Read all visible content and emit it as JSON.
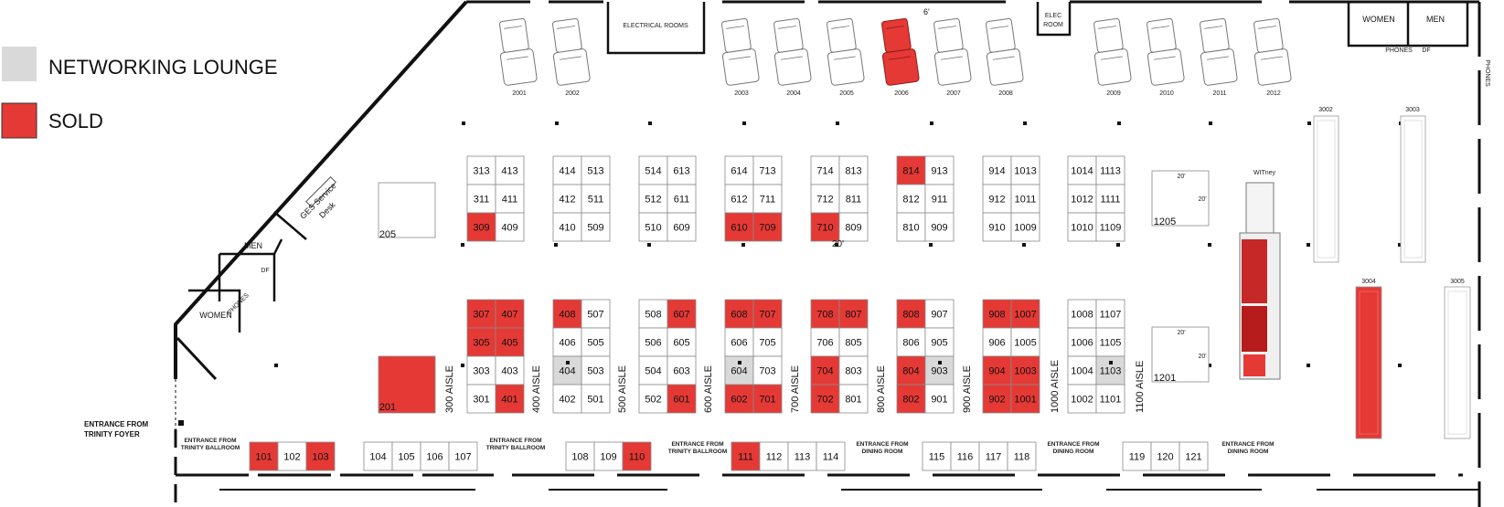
{
  "legend": [
    {
      "label": "NETWORKING LOUNGE",
      "color": "#d9d9d9"
    },
    {
      "label": "SOLD",
      "color": "#e53935"
    }
  ],
  "colors": {
    "sold": "#e53935",
    "lounge": "#d9d9d9",
    "available": "#ffffff",
    "wall": "#111111"
  },
  "rooms": {
    "electrical": "ELECTRICAL ROOMS",
    "elec_line1": "ELEC",
    "elec_line2": "ROOM",
    "women_top": "WOMEN",
    "men_top": "MEN",
    "phones_top": "PHONES",
    "df_top": "DF",
    "phones_right": "PHONES",
    "women_left": "WOMEN",
    "men_left": "MEN",
    "phones_left": "PHONES",
    "df_left": "DF",
    "ges_line1": "GES Service",
    "ges_line2": "Desk"
  },
  "dims": {
    "six_ft": "6'",
    "twenty_main": "20'"
  },
  "entrances": {
    "trinity_foyer_1": "ENTRANCE FROM",
    "trinity_foyer_2": "TRINITY FOYER",
    "ballroom_a_1": "ENTRANCE FROM",
    "ballroom_a_2": "TRINITY BALLROOM",
    "ballroom_b_1": "ENTRANCE FROM",
    "ballroom_b_2": "TRINITY BALLROOM",
    "ballroom_c_1": "ENTRANCE FROM",
    "ballroom_c_2": "TRINITY BALLROOM",
    "dining_a_1": "ENTRANCE FROM",
    "dining_a_2": "DINING ROOM",
    "dining_b_1": "ENTRANCE FROM",
    "dining_b_2": "DINING ROOM",
    "dining_c_1": "ENTRANCE FROM",
    "dining_c_2": "DINING ROOM"
  },
  "aisles": [
    "300 AISLE",
    "400 AISLE",
    "500 AISLE",
    "600 AISLE",
    "700 AISLE",
    "800 AISLE",
    "900 AISLE",
    "1000 AISLE",
    "1100 AISLE"
  ],
  "vehicles": [
    "2001",
    "2002",
    "2003",
    "2004",
    "2005",
    "2006",
    "2007",
    "2008",
    "2009",
    "2010",
    "2011",
    "2012"
  ],
  "vehicle_sold": "2006",
  "twenties": {
    "a1": "20'",
    "a2": "20'",
    "b1": "20'",
    "b2": "20'"
  },
  "truck_label": "WITney",
  "islands": {
    "i3002": "3002",
    "i3003": "3003",
    "i3004": "3004",
    "i3005": "3005",
    "b1205": "1205",
    "b1201": "1201",
    "b205": "205",
    "b201": "201"
  },
  "booths": {
    "top_blocks": [
      {
        "rows": [
          [
            "313",
            "413"
          ],
          [
            "311",
            "411"
          ],
          [
            "309",
            "409"
          ]
        ]
      },
      {
        "rows": [
          [
            "414",
            "513"
          ],
          [
            "412",
            "511"
          ],
          [
            "410",
            "509"
          ]
        ]
      },
      {
        "rows": [
          [
            "514",
            "613"
          ],
          [
            "512",
            "611"
          ],
          [
            "510",
            "609"
          ]
        ]
      },
      {
        "rows": [
          [
            "614",
            "713"
          ],
          [
            "612",
            "711"
          ],
          [
            "610",
            "709"
          ]
        ]
      },
      {
        "rows": [
          [
            "714",
            "813"
          ],
          [
            "712",
            "811"
          ],
          [
            "710",
            "809"
          ]
        ]
      },
      {
        "rows": [
          [
            "814",
            "913"
          ],
          [
            "812",
            "911"
          ],
          [
            "810",
            "909"
          ]
        ]
      },
      {
        "rows": [
          [
            "914",
            "1013"
          ],
          [
            "912",
            "1011"
          ],
          [
            "910",
            "1009"
          ]
        ]
      },
      {
        "rows": [
          [
            "1014",
            "1113"
          ],
          [
            "1012",
            "1111"
          ],
          [
            "1010",
            "1109"
          ]
        ]
      }
    ],
    "bottom_blocks": [
      {
        "rows": [
          [
            "307",
            "407"
          ],
          [
            "305",
            "405"
          ],
          [
            "303",
            "403"
          ],
          [
            "301",
            "401"
          ]
        ]
      },
      {
        "rows": [
          [
            "408",
            "507"
          ],
          [
            "406",
            "505"
          ],
          [
            "404",
            "503"
          ],
          [
            "402",
            "501"
          ]
        ]
      },
      {
        "rows": [
          [
            "508",
            "607"
          ],
          [
            "506",
            "605"
          ],
          [
            "504",
            "603"
          ],
          [
            "502",
            "601"
          ]
        ]
      },
      {
        "rows": [
          [
            "608",
            "707"
          ],
          [
            "606",
            "705"
          ],
          [
            "604",
            "703"
          ],
          [
            "602",
            "701"
          ]
        ]
      },
      {
        "rows": [
          [
            "708",
            "807"
          ],
          [
            "706",
            "805"
          ],
          [
            "704",
            "803"
          ],
          [
            "702",
            "801"
          ]
        ]
      },
      {
        "rows": [
          [
            "808",
            "907"
          ],
          [
            "806",
            "905"
          ],
          [
            "804",
            "903"
          ],
          [
            "802",
            "901"
          ]
        ]
      },
      {
        "rows": [
          [
            "908",
            "1007"
          ],
          [
            "906",
            "1005"
          ],
          [
            "904",
            "1003"
          ],
          [
            "902",
            "1001"
          ]
        ]
      },
      {
        "rows": [
          [
            "1008",
            "1107"
          ],
          [
            "1006",
            "1105"
          ],
          [
            "1004",
            "1103"
          ],
          [
            "1002",
            "1101"
          ]
        ]
      }
    ],
    "front_groups": [
      [
        "101",
        "102",
        "103"
      ],
      [
        "104",
        "105",
        "106",
        "107"
      ],
      [
        "108",
        "109",
        "110"
      ],
      [
        "111",
        "112",
        "113",
        "114"
      ],
      [
        "115",
        "116",
        "117",
        "118"
      ],
      [
        "119",
        "120",
        "121"
      ]
    ],
    "sold": [
      "309",
      "610",
      "709",
      "710",
      "814",
      "307",
      "407",
      "305",
      "405",
      "401",
      "408",
      "607",
      "601",
      "608",
      "707",
      "602",
      "701",
      "708",
      "807",
      "704",
      "702",
      "808",
      "804",
      "802",
      "908",
      "1007",
      "904",
      "1003",
      "902",
      "1001",
      "201",
      "101",
      "103",
      "110",
      "111",
      "3004"
    ],
    "lounge": [
      "404",
      "604",
      "903",
      "1103"
    ]
  }
}
